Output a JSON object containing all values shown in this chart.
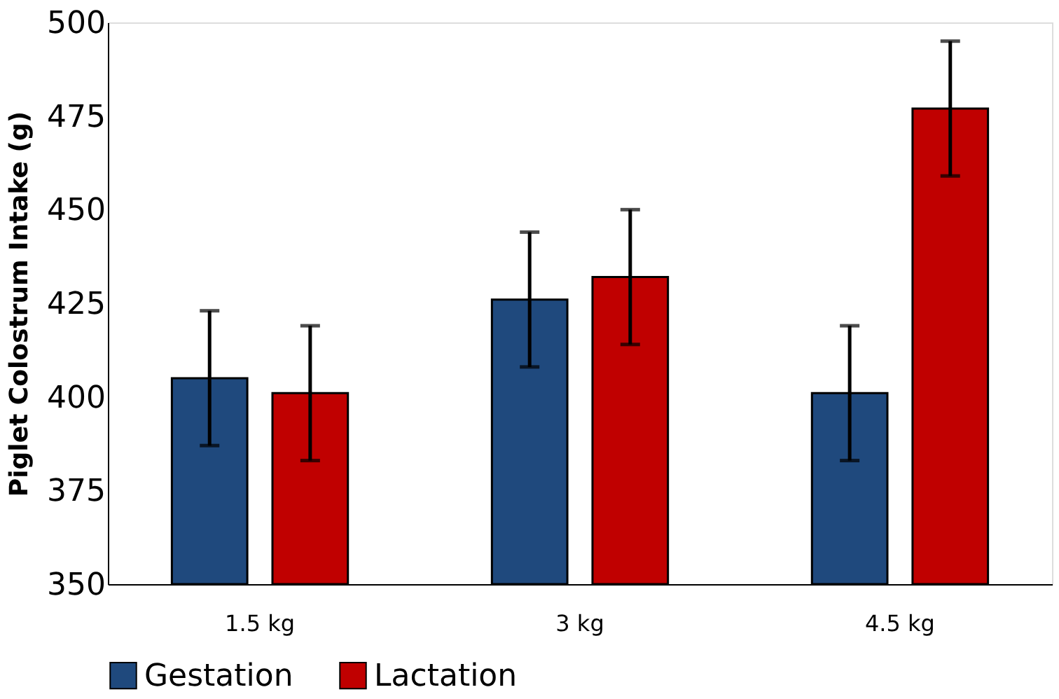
{
  "chart_data": {
    "type": "bar",
    "ylabel": "Piglet Colostrum Intake (g)",
    "categories": [
      "1.5 kg",
      "3 kg",
      "4.5 kg"
    ],
    "series": [
      {
        "name": "Gestation",
        "color": "#1f497d",
        "values": [
          405,
          426,
          401
        ],
        "errors": [
          18,
          18,
          18
        ]
      },
      {
        "name": "Lactation",
        "color": "#c00000",
        "values": [
          401,
          432,
          477
        ],
        "errors": [
          18,
          18,
          18
        ]
      }
    ],
    "ylim": [
      350,
      500
    ],
    "yticks": [
      350,
      375,
      400,
      425,
      450,
      475,
      500
    ],
    "grid": false,
    "legend": "bottom"
  }
}
